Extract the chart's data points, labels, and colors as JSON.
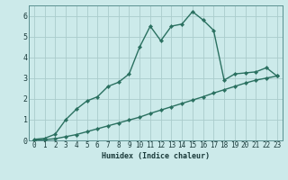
{
  "title": "",
  "xlabel": "Humidex (Indice chaleur)",
  "background_color": "#cceaea",
  "grid_color": "#aacccc",
  "line_color": "#2a7060",
  "xlim": [
    -0.5,
    23.5
  ],
  "ylim": [
    0,
    6.5
  ],
  "x_ticks": [
    0,
    1,
    2,
    3,
    4,
    5,
    6,
    7,
    8,
    9,
    10,
    11,
    12,
    13,
    14,
    15,
    16,
    17,
    18,
    19,
    20,
    21,
    22,
    23
  ],
  "y_ticks": [
    0,
    1,
    2,
    3,
    4,
    5,
    6
  ],
  "line1_x": [
    0,
    1,
    2,
    3,
    4,
    5,
    6,
    7,
    8,
    9,
    10,
    11,
    12,
    13,
    14,
    15,
    16,
    17,
    18,
    19,
    20,
    21,
    22,
    23
  ],
  "line1_y": [
    0.05,
    0.1,
    0.3,
    1.0,
    1.5,
    1.9,
    2.1,
    2.6,
    2.8,
    3.2,
    4.5,
    5.5,
    4.8,
    5.5,
    5.6,
    6.2,
    5.8,
    5.3,
    2.9,
    3.2,
    3.25,
    3.3,
    3.5,
    3.1
  ],
  "line2_x": [
    0,
    1,
    2,
    3,
    4,
    5,
    6,
    7,
    8,
    9,
    10,
    11,
    12,
    13,
    14,
    15,
    16,
    17,
    18,
    19,
    20,
    21,
    22,
    23
  ],
  "line2_y": [
    0.0,
    0.04,
    0.08,
    0.18,
    0.28,
    0.42,
    0.56,
    0.7,
    0.84,
    0.98,
    1.12,
    1.3,
    1.46,
    1.62,
    1.78,
    1.94,
    2.1,
    2.28,
    2.44,
    2.6,
    2.76,
    2.9,
    3.0,
    3.1
  ],
  "xlabel_fontsize": 6.0,
  "tick_fontsize": 5.5,
  "marker_size": 2.2,
  "linewidth": 1.0
}
